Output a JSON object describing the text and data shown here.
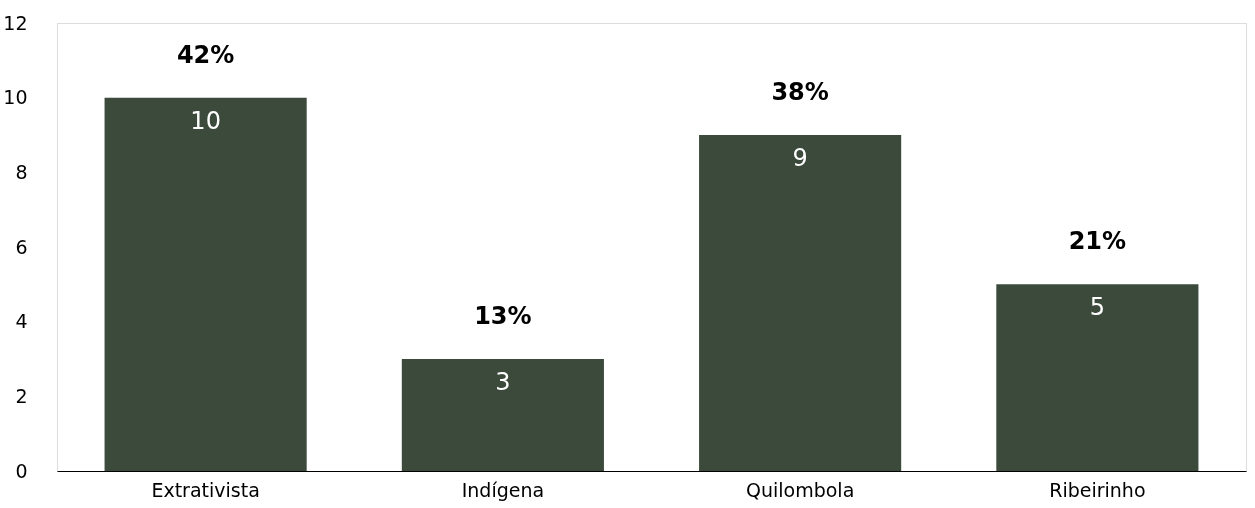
{
  "chart_data": {
    "type": "bar",
    "categories": [
      "Extrativista",
      "Indígena",
      "Quilombola",
      "Ribeirinho"
    ],
    "values": [
      10,
      3,
      9,
      5
    ],
    "color": "#3b4a3b",
    "ylim": [
      0,
      12
    ],
    "yticks": [
      0,
      2,
      4,
      6,
      8,
      10,
      12
    ],
    "grid": false,
    "data_labels": true,
    "annotations": [
      "42%",
      "13%",
      "38%",
      "21%"
    ]
  }
}
